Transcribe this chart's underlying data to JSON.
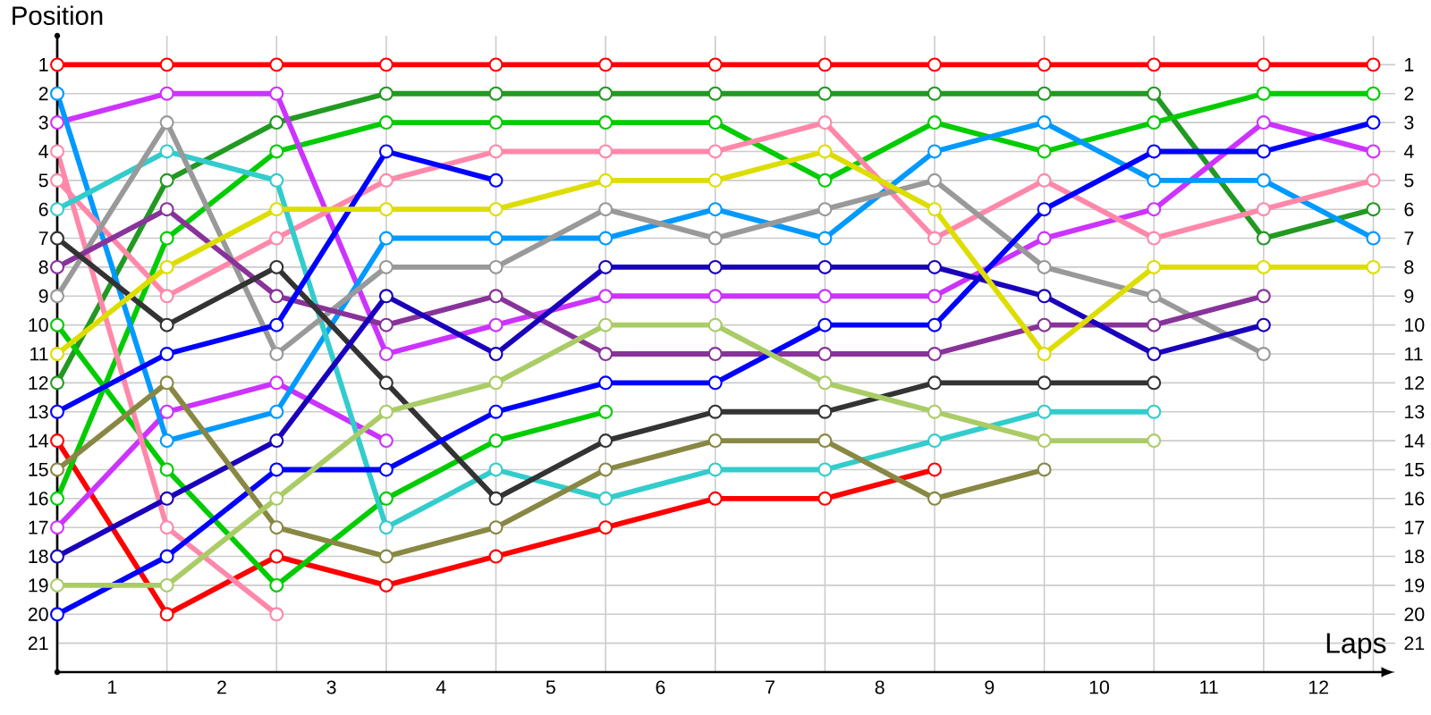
{
  "chart_data": {
    "type": "line",
    "xlabel": "Laps",
    "ylabel": "Position",
    "marker": "circle",
    "line_style": "solid",
    "grid": true,
    "x": [
      0,
      1,
      2,
      3,
      4,
      5,
      6,
      7,
      8,
      9,
      10,
      11,
      12
    ],
    "xlim": [
      0,
      12.2
    ],
    "ylim": [
      22,
      0
    ],
    "y2lim": [
      22,
      0
    ],
    "xticks": [
      {
        "value": 0,
        "label": null
      },
      {
        "value": 0.5,
        "label": "1"
      },
      {
        "value": 1,
        "label": null
      },
      {
        "value": 1.5,
        "label": "2"
      },
      {
        "value": 2,
        "label": null
      },
      {
        "value": 2.5,
        "label": "3"
      },
      {
        "value": 3,
        "label": null
      },
      {
        "value": 3.5,
        "label": "4"
      },
      {
        "value": 4,
        "label": null
      },
      {
        "value": 4.5,
        "label": "5"
      },
      {
        "value": 5,
        "label": null
      },
      {
        "value": 5.5,
        "label": "6"
      },
      {
        "value": 6,
        "label": null
      },
      {
        "value": 6.5,
        "label": "7"
      },
      {
        "value": 7,
        "label": null
      },
      {
        "value": 7.5,
        "label": "8"
      },
      {
        "value": 8,
        "label": null
      },
      {
        "value": 8.5,
        "label": "9"
      },
      {
        "value": 9,
        "label": null
      },
      {
        "value": 9.5,
        "label": "10"
      },
      {
        "value": 10,
        "label": null
      },
      {
        "value": 10.5,
        "label": "11"
      },
      {
        "value": 11,
        "label": null
      },
      {
        "value": 11.5,
        "label": "12"
      },
      {
        "value": 12,
        "label": null
      }
    ],
    "yticks": [
      1,
      2,
      3,
      4,
      5,
      6,
      7,
      8,
      9,
      10,
      11,
      12,
      13,
      14,
      15,
      16,
      17,
      18,
      19,
      20,
      21
    ],
    "y2ticks": [
      1,
      2,
      3,
      4,
      5,
      6,
      7,
      8,
      9,
      10,
      11,
      12,
      13,
      14,
      15,
      16,
      17,
      18,
      19,
      20,
      21
    ],
    "series": [
      {
        "color": "#ff0000",
        "values": [
          1,
          1,
          1,
          1,
          1,
          1,
          1,
          1,
          1,
          1,
          1,
          1,
          1
        ]
      },
      {
        "color": "#ff0000",
        "values": [
          14,
          20,
          18,
          19,
          18,
          17,
          16,
          16,
          15,
          null,
          null,
          null,
          null
        ]
      },
      {
        "color": "#229922",
        "values": [
          12,
          5,
          3,
          2,
          2,
          2,
          2,
          2,
          2,
          2,
          2,
          7,
          6
        ]
      },
      {
        "color": "#00cc00",
        "values": [
          16,
          7,
          4,
          3,
          3,
          3,
          3,
          5,
          3,
          4,
          3,
          2,
          2
        ]
      },
      {
        "color": "#00cc00",
        "values": [
          10,
          15,
          19,
          16,
          14,
          13,
          null,
          null,
          null,
          null,
          null,
          null,
          null
        ]
      },
      {
        "color": "#cc33ff",
        "values": [
          3,
          2,
          2,
          11,
          10,
          9,
          9,
          9,
          9,
          7,
          6,
          3,
          4
        ]
      },
      {
        "color": "#cc33ff",
        "values": [
          17,
          13,
          12,
          14,
          null,
          null,
          null,
          null,
          null,
          null,
          null,
          null,
          null
        ]
      },
      {
        "color": "#0099ff",
        "values": [
          2,
          14,
          13,
          7,
          7,
          7,
          6,
          7,
          4,
          3,
          5,
          5,
          7
        ]
      },
      {
        "color": "#ff88aa",
        "values": [
          5,
          9,
          7,
          5,
          4,
          4,
          4,
          3,
          7,
          5,
          7,
          6,
          5
        ]
      },
      {
        "color": "#ff88aa",
        "values": [
          4,
          17,
          20,
          null,
          null,
          null,
          null,
          null,
          null,
          null,
          null,
          null,
          null
        ]
      },
      {
        "color": "#33cccc",
        "values": [
          6,
          4,
          5,
          17,
          15,
          16,
          15,
          15,
          14,
          13,
          13,
          null,
          null
        ]
      },
      {
        "color": "#999999",
        "values": [
          9,
          3,
          11,
          8,
          8,
          6,
          7,
          6,
          5,
          8,
          9,
          11,
          null
        ]
      },
      {
        "color": "#883399",
        "values": [
          8,
          6,
          9,
          10,
          9,
          11,
          11,
          11,
          11,
          10,
          10,
          9,
          null
        ]
      },
      {
        "color": "#333333",
        "values": [
          7,
          10,
          8,
          12,
          16,
          14,
          13,
          13,
          12,
          12,
          12,
          null,
          null
        ]
      },
      {
        "color": "#0000ff",
        "values": [
          20,
          18,
          15,
          15,
          13,
          12,
          12,
          10,
          10,
          6,
          4,
          4,
          3
        ]
      },
      {
        "color": "#0000ff",
        "values": [
          13,
          11,
          10,
          4,
          5,
          null,
          null,
          null,
          null,
          null,
          null,
          null,
          null
        ]
      },
      {
        "color": "#1a00bb",
        "values": [
          18,
          16,
          14,
          9,
          11,
          8,
          8,
          8,
          8,
          9,
          11,
          10,
          null
        ]
      },
      {
        "color": "#dddd00",
        "values": [
          11,
          8,
          6,
          6,
          6,
          5,
          5,
          4,
          6,
          11,
          8,
          8,
          8
        ]
      },
      {
        "color": "#888844",
        "values": [
          15,
          12,
          17,
          18,
          17,
          15,
          14,
          14,
          16,
          15,
          null,
          null,
          null
        ]
      },
      {
        "color": "#aacc66",
        "values": [
          19,
          19,
          16,
          13,
          12,
          10,
          10,
          12,
          13,
          14,
          14,
          null,
          null
        ]
      }
    ]
  }
}
